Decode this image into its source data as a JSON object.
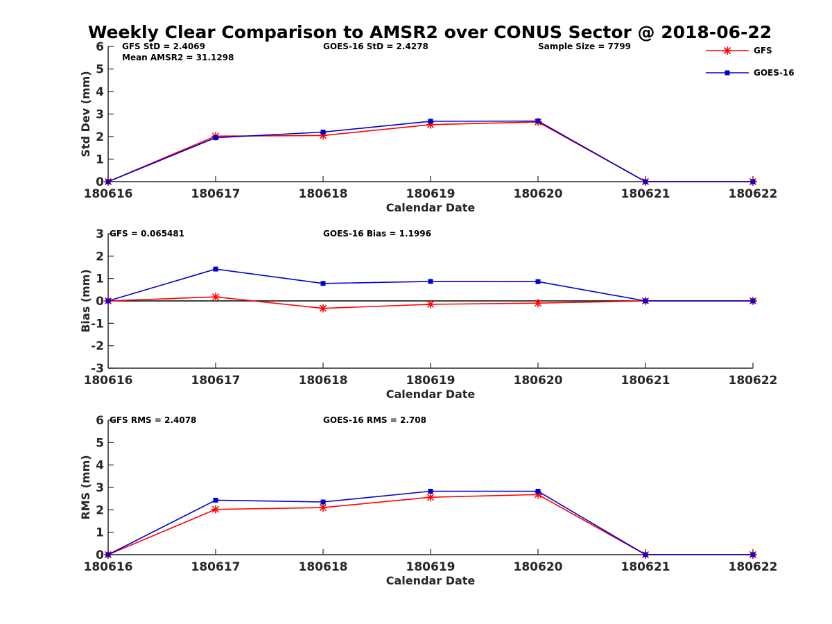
{
  "title": "Weekly Clear Comparison to AMSR2 over CONUS Sector @ 2018-06-22",
  "colors": {
    "gfs": "#ff0000",
    "goes": "#0000cd",
    "axis": "#262626",
    "zero_line": "#000000"
  },
  "legend": {
    "placement": "top-right",
    "entries": [
      {
        "name": "GFS",
        "color": "#ff0000",
        "marker": "asterisk"
      },
      {
        "name": "GOES-16",
        "color": "#0000cd",
        "marker": "square"
      }
    ]
  },
  "chart_data": [
    {
      "type": "line",
      "ylabel": "Std Dev (mm)",
      "xlabel": "Calendar Date",
      "ylim": [
        0,
        6
      ],
      "yticks": [
        "0",
        "1",
        "2",
        "3",
        "4",
        "5",
        "6"
      ],
      "categories": [
        "180616",
        "180617",
        "180618",
        "180619",
        "180620",
        "180621",
        "180622"
      ],
      "annotations": [
        "GFS StD = 2.4069",
        "Mean AMSR2 = 31.1298",
        "GOES-16 StD = 2.4278",
        "Sample Size = 7799"
      ],
      "zero_line": false,
      "series": [
        {
          "name": "GFS",
          "values": [
            0,
            2.02,
            2.05,
            2.53,
            2.65,
            0,
            0
          ]
        },
        {
          "name": "GOES-16",
          "values": [
            0,
            1.95,
            2.2,
            2.68,
            2.69,
            0,
            0
          ]
        }
      ]
    },
    {
      "type": "line",
      "ylabel": "Bias (mm)",
      "xlabel": "Calendar Date",
      "ylim": [
        -3,
        3
      ],
      "yticks": [
        "-3",
        "-2",
        "-1",
        "0",
        "1",
        "2",
        "3"
      ],
      "categories": [
        "180616",
        "180617",
        "180618",
        "180619",
        "180620",
        "180621",
        "180622"
      ],
      "annotations": [
        "GFS = 0.065481",
        "GOES-16 Bias  = 1.1996"
      ],
      "zero_line": true,
      "series": [
        {
          "name": "GFS",
          "values": [
            0,
            0.18,
            -0.33,
            -0.15,
            -0.1,
            0,
            0
          ]
        },
        {
          "name": "GOES-16",
          "values": [
            0,
            1.42,
            0.78,
            0.87,
            0.86,
            0,
            0
          ]
        }
      ]
    },
    {
      "type": "line",
      "ylabel": "RMS (mm)",
      "xlabel": "Calendar Date",
      "ylim": [
        0,
        6
      ],
      "yticks": [
        "0",
        "1",
        "2",
        "3",
        "4",
        "5",
        "6"
      ],
      "categories": [
        "180616",
        "180617",
        "180618",
        "180619",
        "180620",
        "180621",
        "180622"
      ],
      "annotations": [
        "GFS RMS = 2.4078",
        "GOES-16 RMS = 2.708"
      ],
      "zero_line": false,
      "series": [
        {
          "name": "GFS",
          "values": [
            0,
            2.02,
            2.1,
            2.56,
            2.68,
            0,
            0
          ]
        },
        {
          "name": "GOES-16",
          "values": [
            0,
            2.43,
            2.35,
            2.83,
            2.83,
            0,
            0
          ]
        }
      ]
    }
  ]
}
